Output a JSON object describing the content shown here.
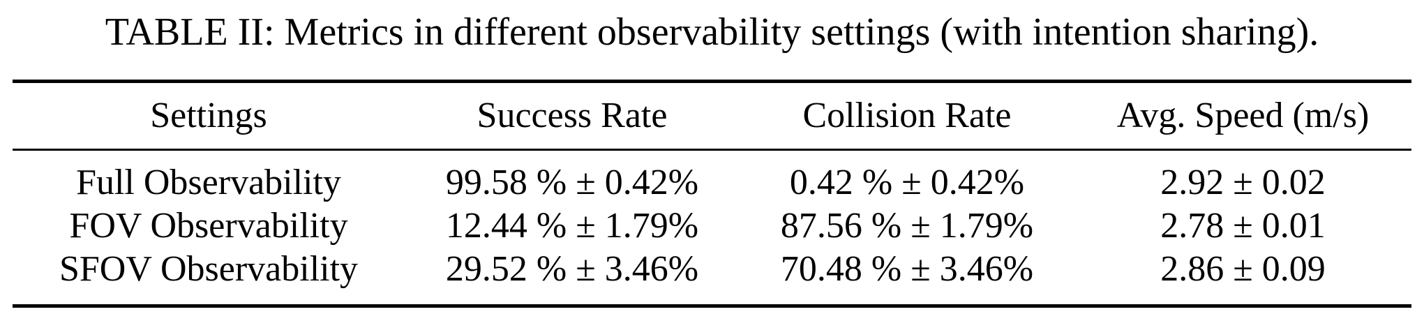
{
  "caption": "TABLE II: Metrics in different observability settings (with intention sharing).",
  "table": {
    "headers": [
      "Settings",
      "Success Rate",
      "Collision Rate",
      "Avg. Speed (m/s)"
    ],
    "rows": [
      [
        "Full Observability",
        "99.58 % ± 0.42%",
        "0.42 % ± 0.42%",
        "2.92 ± 0.02"
      ],
      [
        "FOV Observability",
        "12.44 % ± 1.79%",
        "87.56 % ± 1.79%",
        "2.78 ± 0.01"
      ],
      [
        "SFOV Observability",
        "29.52 % ± 3.46%",
        "70.48 % ± 3.46%",
        "2.86 ± 0.09"
      ]
    ]
  }
}
